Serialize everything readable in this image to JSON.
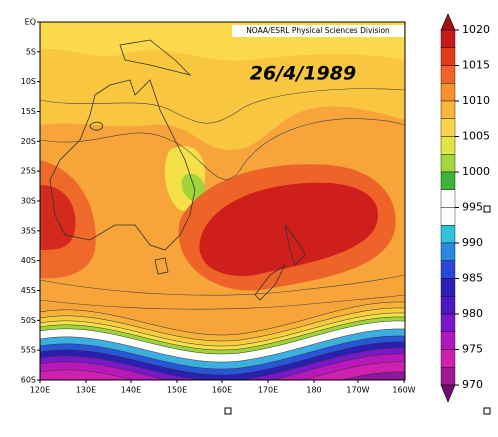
{
  "map": {
    "credit": "NOAA/ESRL Physical Sciences Division",
    "date": "26/4/1989",
    "lat_labels": [
      "EQ",
      "5S",
      "10S",
      "15S",
      "20S",
      "25S",
      "30S",
      "35S",
      "40S",
      "45S",
      "50S",
      "55S",
      "60S"
    ],
    "lon_labels": [
      "120E",
      "130E",
      "140E",
      "150E",
      "160E",
      "170E",
      "180",
      "170W",
      "160W"
    ]
  },
  "colorbar": {
    "ticks": [
      1020,
      1015,
      1010,
      1005,
      1000,
      995,
      990,
      985,
      980,
      975,
      970
    ]
  }
}
